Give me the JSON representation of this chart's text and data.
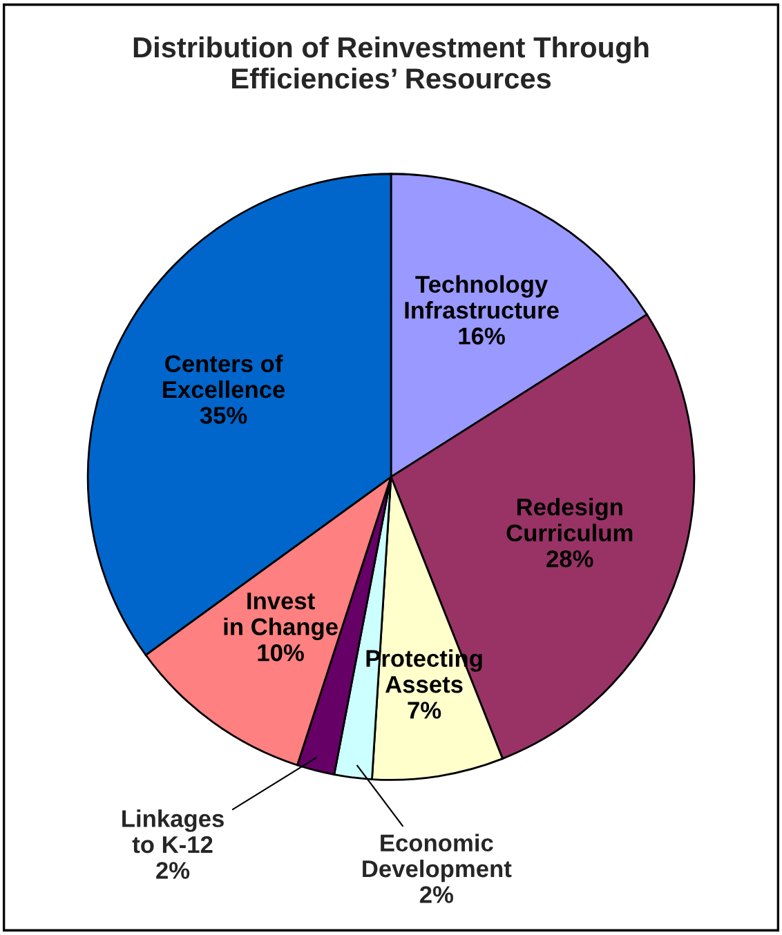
{
  "chart_data": {
    "type": "pie",
    "title": "Distribution of Reinvestment Through\nEfficiencies’ Resources",
    "categories": [
      "Technology\nInfrastructure",
      "Redesign\nCurriculum",
      "Protecting\nAssets",
      "Economic\nDevelopment",
      "Linkages\nto K-12",
      "Invest\nin Change",
      "Centers of\nExcellence"
    ],
    "values": [
      16,
      28,
      7,
      2,
      2,
      10,
      35
    ],
    "value_labels": [
      "16%",
      "28%",
      "7%",
      "2%",
      "2%",
      "10%",
      "35%"
    ],
    "colors": [
      "#9999ff",
      "#993366",
      "#ffffcc",
      "#ccffff",
      "#660066",
      "#ff8080",
      "#0066cc"
    ],
    "legend": false
  }
}
